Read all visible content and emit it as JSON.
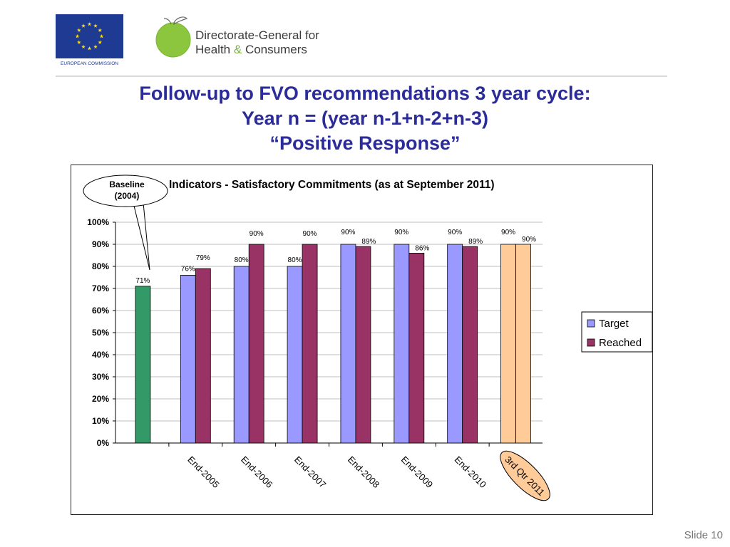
{
  "header": {
    "eu_logo_text": "EUROPEAN COMMISSION",
    "dg_line1": "Directorate-General for",
    "dg_line2_a": "Health",
    "dg_line2_amp": "&",
    "dg_line2_b": "Consumers"
  },
  "slide": {
    "title_line1": "Follow-up to FVO recommendations 3 year cycle:",
    "title_line2": "Year n = (year n-1+n-2+n-3)",
    "title_line3": "“Positive Response”",
    "slide_number": "Slide 10"
  },
  "colors": {
    "target": "#9999ff",
    "reached": "#993366",
    "baseline": "#339966",
    "latest_target": "#ffcc99",
    "latest_label_bg": "#ffcc99"
  },
  "chart_data": {
    "type": "bar",
    "title": "Indicators - Satisfactory Commitments (as at September 2011)",
    "ylim": [
      0,
      100
    ],
    "yticks": [
      "0%",
      "10%",
      "20%",
      "30%",
      "40%",
      "50%",
      "60%",
      "70%",
      "80%",
      "90%",
      "100%"
    ],
    "grid": true,
    "legend_position": "right",
    "categories": [
      "",
      "End-2005",
      "End-2006",
      "End-2007",
      "End-2008",
      "End-2009",
      "End-2010",
      "3rd Qtr 2011"
    ],
    "series": [
      {
        "name": "Target",
        "values": [
          null,
          76,
          80,
          80,
          90,
          90,
          90,
          90
        ],
        "labels": [
          "",
          "76%",
          "80%",
          "80%",
          "90%",
          "90%",
          "90%",
          "90%"
        ]
      },
      {
        "name": "Reached",
        "values": [
          null,
          79,
          90,
          90,
          89,
          86,
          89,
          90
        ],
        "labels": [
          "",
          "79%",
          "90%",
          "90%",
          "89%",
          "86%",
          "89%",
          "90%"
        ]
      }
    ],
    "baseline": {
      "value": 71,
      "label": "71%"
    },
    "callout": {
      "line1": "Baseline",
      "line2": "(2004)"
    }
  }
}
